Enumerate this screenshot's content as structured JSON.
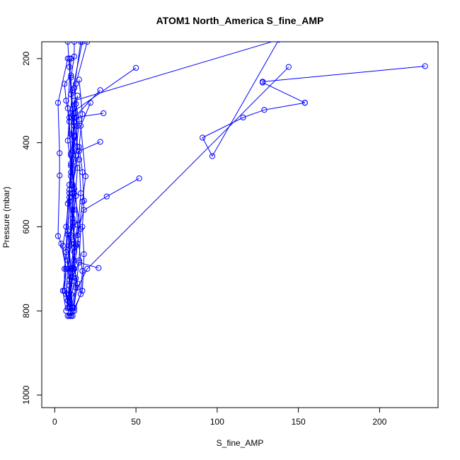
{
  "chart_data": {
    "type": "scatter",
    "title": "ATOM1 North_America S_fine_AMP",
    "xlabel": "S_fine_AMP",
    "ylabel": "Pressure (mbar)",
    "xlim": [
      -8,
      236
    ],
    "ylim": [
      1030,
      160
    ],
    "y_reversed": true,
    "x_ticks": [
      0,
      50,
      100,
      150,
      200
    ],
    "y_ticks": [
      200,
      400,
      600,
      800,
      1000
    ],
    "grid": false,
    "color": "#0000ff",
    "marker": "open-circle",
    "profiles": [
      [
        [
          138,
          155
        ],
        [
          97,
          432
        ],
        [
          91,
          388
        ],
        [
          116,
          340
        ],
        [
          129,
          322
        ],
        [
          154,
          305
        ]
      ],
      [
        [
          144,
          220
        ],
        [
          20,
          700
        ],
        [
          14,
          745
        ],
        [
          11,
          790
        ],
        [
          9,
          812
        ]
      ],
      [
        [
          228,
          218
        ],
        [
          128,
          255
        ],
        [
          128,
          257
        ],
        [
          154,
          305
        ]
      ],
      [
        [
          50,
          222
        ],
        [
          10,
          330
        ],
        [
          11,
          420
        ],
        [
          9,
          500
        ],
        [
          10,
          640
        ],
        [
          8,
          700
        ],
        [
          7,
          760
        ],
        [
          8,
          793
        ]
      ],
      [
        [
          138,
          155
        ],
        [
          12,
          300
        ],
        [
          10,
          380
        ],
        [
          14,
          460
        ],
        [
          12,
          560
        ],
        [
          9,
          645
        ],
        [
          9,
          740
        ],
        [
          10,
          812
        ]
      ],
      [
        [
          28,
          275
        ],
        [
          12,
          340
        ],
        [
          10,
          430
        ],
        [
          9,
          540
        ],
        [
          8,
          610
        ],
        [
          10,
          700
        ],
        [
          8,
          775
        ]
      ],
      [
        [
          30,
          330
        ],
        [
          13,
          340
        ],
        [
          14,
          410
        ],
        [
          10,
          470
        ],
        [
          11,
          580
        ],
        [
          8,
          655
        ],
        [
          12,
          730
        ],
        [
          9,
          790
        ]
      ],
      [
        [
          28,
          398
        ],
        [
          15,
          420
        ],
        [
          11,
          500
        ],
        [
          12,
          590
        ],
        [
          12,
          680
        ],
        [
          9,
          770
        ]
      ],
      [
        [
          52,
          485
        ],
        [
          32,
          528
        ],
        [
          18,
          560
        ],
        [
          12,
          640
        ],
        [
          10,
          698
        ],
        [
          8,
          775
        ],
        [
          10,
          812
        ]
      ],
      [
        [
          27,
          698
        ],
        [
          15,
          685
        ],
        [
          11,
          720
        ],
        [
          9,
          760
        ],
        [
          11,
          800
        ]
      ],
      [
        [
          22,
          305
        ],
        [
          16,
          360
        ],
        [
          19,
          480
        ],
        [
          17,
          540
        ],
        [
          14,
          640
        ],
        [
          12,
          700
        ],
        [
          9,
          775
        ]
      ],
      [
        [
          8,
          200
        ],
        [
          2,
          305
        ],
        [
          3,
          425
        ],
        [
          3,
          478
        ],
        [
          2,
          622
        ],
        [
          4,
          640
        ],
        [
          7,
          700
        ],
        [
          5,
          752
        ],
        [
          7,
          800
        ]
      ],
      [
        [
          10,
          240
        ],
        [
          6,
          260
        ],
        [
          7,
          300
        ],
        [
          9,
          340
        ],
        [
          8,
          395
        ],
        [
          10,
          455
        ],
        [
          9,
          512
        ],
        [
          11,
          600
        ],
        [
          13,
          645
        ],
        [
          11,
          700
        ],
        [
          10,
          760
        ],
        [
          8,
          812
        ]
      ],
      [
        [
          12,
          160
        ],
        [
          12,
          195
        ],
        [
          10,
          245
        ],
        [
          11,
          320
        ],
        [
          12,
          383
        ],
        [
          11,
          470
        ],
        [
          13,
          527
        ],
        [
          14,
          595
        ],
        [
          12,
          660
        ],
        [
          10,
          720
        ],
        [
          9,
          782
        ]
      ],
      [
        [
          17,
          160
        ],
        [
          11,
          275
        ],
        [
          9,
          350
        ],
        [
          10,
          425
        ],
        [
          9,
          530
        ],
        [
          8,
          618
        ],
        [
          6,
          700
        ],
        [
          6,
          752
        ],
        [
          9,
          793
        ]
      ],
      [
        [
          20,
          160
        ],
        [
          13,
          260
        ],
        [
          12,
          330
        ],
        [
          12,
          398
        ],
        [
          10,
          450
        ],
        [
          12,
          520
        ],
        [
          16,
          605
        ],
        [
          15,
          680
        ],
        [
          13,
          745
        ],
        [
          9,
          812
        ]
      ],
      [
        [
          9,
          200
        ],
        [
          10,
          285
        ],
        [
          12,
          360
        ],
        [
          10,
          480
        ],
        [
          8,
          545
        ],
        [
          7,
          660
        ],
        [
          9,
          726
        ],
        [
          11,
          793
        ]
      ],
      [
        [
          15,
          250
        ],
        [
          17,
          332
        ],
        [
          15,
          410
        ],
        [
          17,
          470
        ],
        [
          18,
          538
        ],
        [
          17,
          600
        ],
        [
          18,
          665
        ],
        [
          17,
          752
        ],
        [
          10,
          812
        ]
      ],
      [
        [
          8,
          160
        ],
        [
          9,
          220
        ],
        [
          10,
          285
        ],
        [
          12,
          385
        ],
        [
          11,
          455
        ],
        [
          9,
          520
        ],
        [
          7,
          600
        ],
        [
          5,
          645
        ],
        [
          7,
          700
        ],
        [
          6,
          752
        ],
        [
          9,
          775
        ]
      ],
      [
        [
          13,
          308
        ],
        [
          15,
          345
        ],
        [
          13,
          430
        ],
        [
          11,
          520
        ],
        [
          10,
          620
        ],
        [
          8,
          680
        ],
        [
          9,
          740
        ],
        [
          8,
          793
        ]
      ],
      [
        [
          10,
          200
        ],
        [
          8,
          318
        ],
        [
          10,
          430
        ],
        [
          12,
          510
        ],
        [
          11,
          590
        ],
        [
          10,
          625
        ],
        [
          12,
          700
        ],
        [
          14,
          735
        ],
        [
          11,
          812
        ]
      ],
      [
        [
          16,
          160
        ],
        [
          12,
          270
        ],
        [
          14,
          360
        ],
        [
          10,
          455
        ],
        [
          11,
          560
        ],
        [
          12,
          650
        ],
        [
          13,
          722
        ],
        [
          12,
          793
        ]
      ],
      [
        [
          14,
          288
        ],
        [
          12,
          352
        ],
        [
          15,
          440
        ],
        [
          16,
          520
        ],
        [
          14,
          620
        ],
        [
          17,
          705
        ],
        [
          16,
          760
        ],
        [
          12,
          800
        ]
      ]
    ]
  }
}
